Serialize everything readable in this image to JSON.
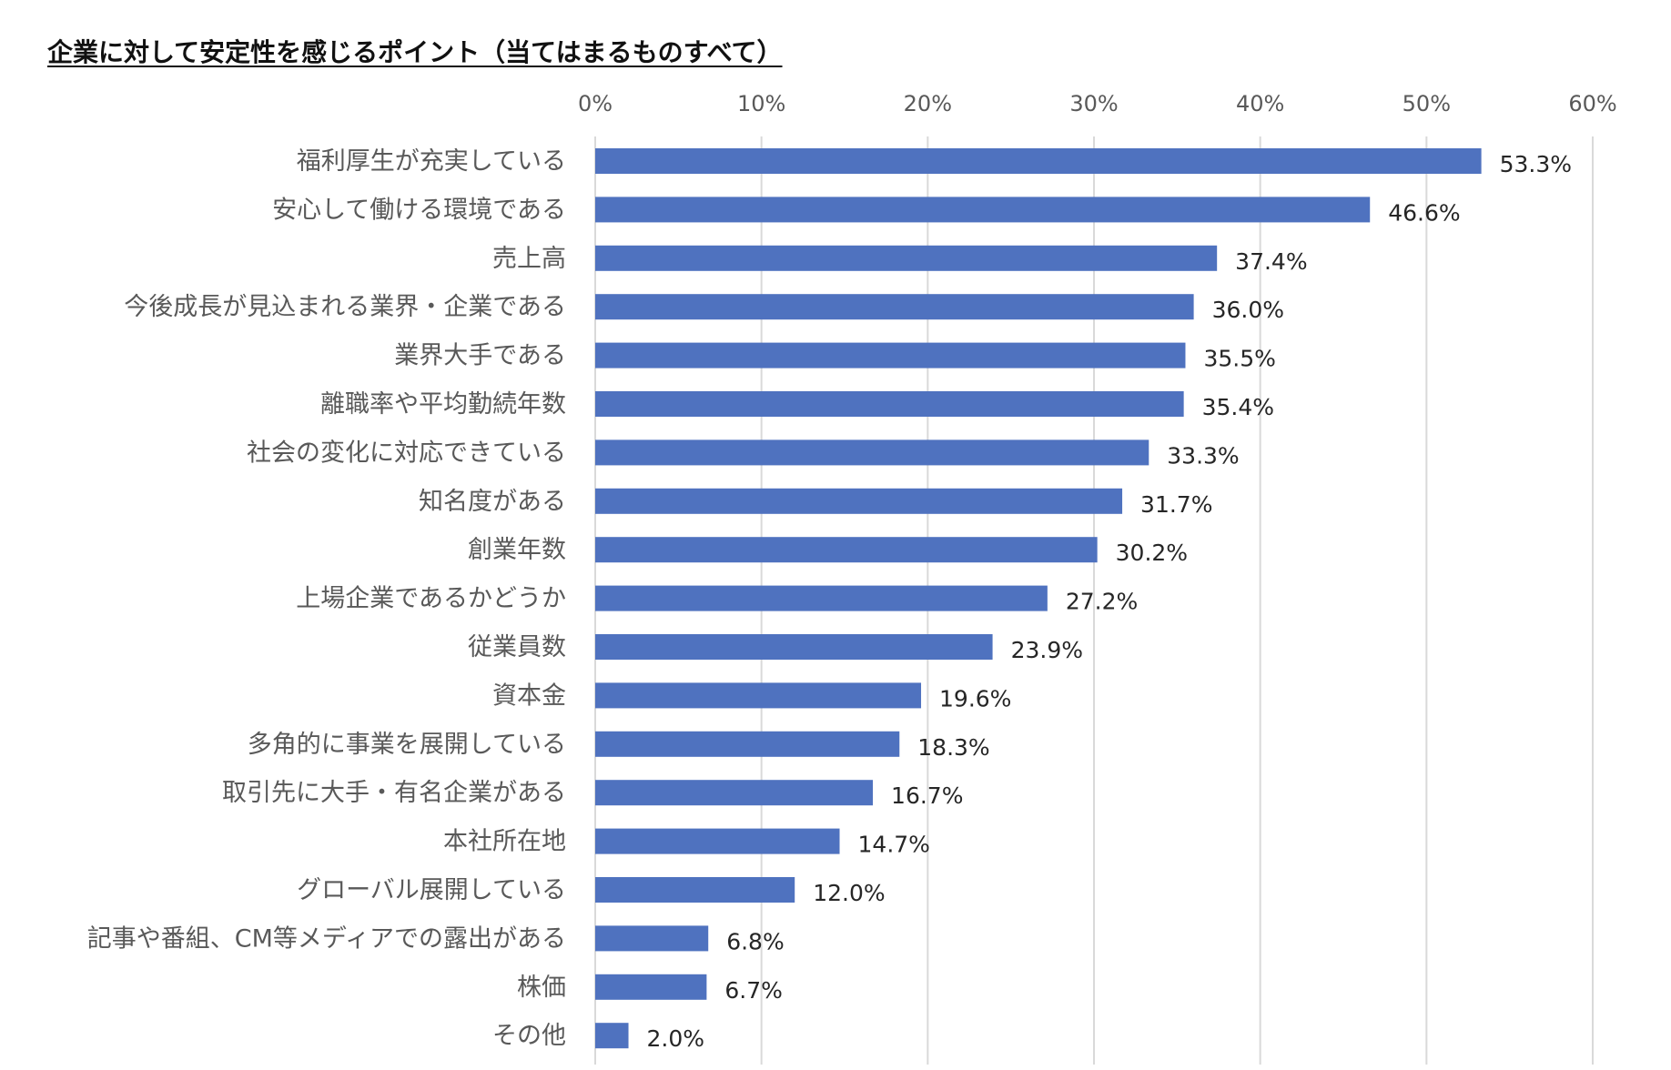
{
  "chart_data": {
    "type": "bar",
    "orientation": "horizontal",
    "title": "企業に対して安定性を感じるポイント（当てはまるものすべて）",
    "xlim": [
      0,
      60
    ],
    "xticks": [
      "0%",
      "10%",
      "20%",
      "30%",
      "40%",
      "50%",
      "60%"
    ],
    "xtick_values": [
      0,
      10,
      20,
      30,
      40,
      50,
      60
    ],
    "xaxis_position": "top",
    "grid": true,
    "bar_color": "#4f72bf",
    "categories": [
      "福利厚生が充実している",
      "安心して働ける環境である",
      "売上高",
      "今後成長が見込まれる業界・企業である",
      "業界大手である",
      "離職率や平均勤続年数",
      "社会の変化に対応できている",
      "知名度がある",
      "創業年数",
      "上場企業であるかどうか",
      "従業員数",
      "資本金",
      "多角的に事業を展開している",
      "取引先に大手・有名企業がある",
      "本社所在地",
      "グローバル展開している",
      "記事や番組、CM等メディアでの露出がある",
      "株価",
      "その他"
    ],
    "values": [
      53.3,
      46.6,
      37.4,
      36.0,
      35.5,
      35.4,
      33.3,
      31.7,
      30.2,
      27.2,
      23.9,
      19.6,
      18.3,
      16.7,
      14.7,
      12.0,
      6.8,
      6.7,
      2.0
    ],
    "data_labels": [
      "53.3%",
      "46.6%",
      "37.4%",
      "36.0%",
      "35.5%",
      "35.4%",
      "33.3%",
      "31.7%",
      "30.2%",
      "27.2%",
      "23.9%",
      "19.6%",
      "18.3%",
      "16.7%",
      "14.7%",
      "12.0%",
      "6.8%",
      "6.7%",
      "2.0%"
    ]
  }
}
